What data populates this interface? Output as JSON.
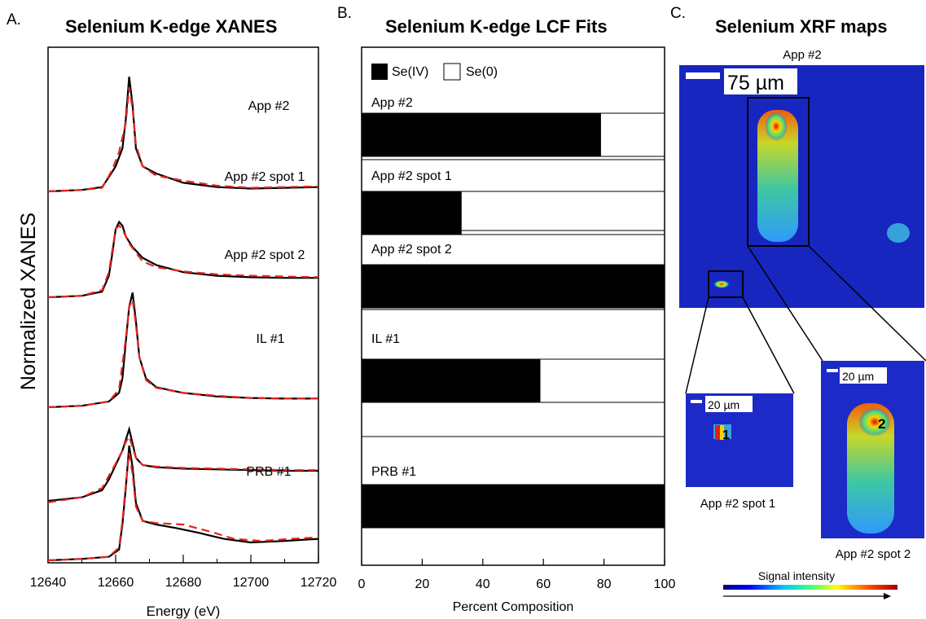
{
  "panels": {
    "a": {
      "letter": "A.",
      "title": "Selenium K-edge XANES"
    },
    "b": {
      "letter": "B.",
      "title": "Selenium K-edge LCF Fits"
    },
    "c": {
      "letter": "C.",
      "title": "Selenium XRF maps"
    }
  },
  "chart_data": [
    {
      "type": "line",
      "title": "Selenium K-edge XANES",
      "xlabel": "Energy (eV)",
      "ylabel": "Normalized XANES",
      "xlim": [
        12640,
        12720
      ],
      "xticks": [
        12640,
        12660,
        12680,
        12700,
        12720
      ],
      "grid": false,
      "line_styles": {
        "data": {
          "color": "#000000",
          "dash": "solid"
        },
        "fit": {
          "color": "#e8231d",
          "dash": "dashed"
        }
      },
      "series": [
        {
          "label": "App #2",
          "data": [
            [
              12640,
              0
            ],
            [
              12650,
              0.02
            ],
            [
              12656,
              0.06
            ],
            [
              12658,
              0.2
            ],
            [
              12660,
              0.35
            ],
            [
              12662,
              0.6
            ],
            [
              12663,
              1.0
            ],
            [
              12664,
              1.6
            ],
            [
              12665,
              1.2
            ],
            [
              12666,
              0.6
            ],
            [
              12668,
              0.35
            ],
            [
              12672,
              0.25
            ],
            [
              12680,
              0.12
            ],
            [
              12690,
              0.06
            ],
            [
              12700,
              0.04
            ],
            [
              12710,
              0.05
            ],
            [
              12720,
              0.06
            ]
          ]
        },
        {
          "label": "App #2 spot 1",
          "data": [
            [
              12640,
              0
            ],
            [
              12650,
              0.02
            ],
            [
              12656,
              0.08
            ],
            [
              12658,
              0.3
            ],
            [
              12659,
              0.6
            ],
            [
              12660,
              0.95
            ],
            [
              12661,
              1.05
            ],
            [
              12662,
              1.0
            ],
            [
              12663,
              0.85
            ],
            [
              12665,
              0.7
            ],
            [
              12668,
              0.55
            ],
            [
              12672,
              0.45
            ],
            [
              12680,
              0.35
            ],
            [
              12690,
              0.3
            ],
            [
              12700,
              0.28
            ],
            [
              12710,
              0.27
            ],
            [
              12720,
              0.27
            ]
          ]
        },
        {
          "label": "App #2 spot 2",
          "data": [
            [
              12640,
              0
            ],
            [
              12650,
              0.02
            ],
            [
              12658,
              0.08
            ],
            [
              12661,
              0.2
            ],
            [
              12662,
              0.4
            ],
            [
              12663,
              0.9
            ],
            [
              12664,
              1.4
            ],
            [
              12665,
              1.6
            ],
            [
              12666,
              1.2
            ],
            [
              12667,
              0.7
            ],
            [
              12669,
              0.4
            ],
            [
              12672,
              0.28
            ],
            [
              12680,
              0.2
            ],
            [
              12690,
              0.15
            ],
            [
              12700,
              0.13
            ],
            [
              12710,
              0.12
            ],
            [
              12720,
              0.12
            ]
          ]
        },
        {
          "label": "IL #1",
          "data": [
            [
              12640,
              0
            ],
            [
              12650,
              0.05
            ],
            [
              12656,
              0.15
            ],
            [
              12658,
              0.3
            ],
            [
              12660,
              0.5
            ],
            [
              12662,
              0.7
            ],
            [
              12663,
              0.85
            ],
            [
              12664,
              1.0
            ],
            [
              12665,
              0.8
            ],
            [
              12666,
              0.6
            ],
            [
              12668,
              0.5
            ],
            [
              12672,
              0.47
            ],
            [
              12680,
              0.45
            ],
            [
              12690,
              0.44
            ],
            [
              12700,
              0.43
            ],
            [
              12710,
              0.42
            ],
            [
              12720,
              0.42
            ]
          ]
        },
        {
          "label": "PRB #1",
          "data": [
            [
              12640,
              0
            ],
            [
              12650,
              0.02
            ],
            [
              12658,
              0.05
            ],
            [
              12661,
              0.15
            ],
            [
              12662,
              0.5
            ],
            [
              12663,
              1.0
            ],
            [
              12664,
              1.6
            ],
            [
              12665,
              1.3
            ],
            [
              12666,
              0.8
            ],
            [
              12668,
              0.55
            ],
            [
              12672,
              0.5
            ],
            [
              12678,
              0.45
            ],
            [
              12685,
              0.38
            ],
            [
              12692,
              0.3
            ],
            [
              12700,
              0.25
            ],
            [
              12710,
              0.27
            ],
            [
              12720,
              0.3
            ]
          ]
        }
      ],
      "fits": [
        {
          "label": "App #2",
          "data": [
            [
              12640,
              0
            ],
            [
              12650,
              0.02
            ],
            [
              12656,
              0.05
            ],
            [
              12659,
              0.3
            ],
            [
              12661,
              0.55
            ],
            [
              12663,
              0.95
            ],
            [
              12664,
              1.45
            ],
            [
              12665,
              1.15
            ],
            [
              12666,
              0.65
            ],
            [
              12668,
              0.35
            ],
            [
              12672,
              0.22
            ],
            [
              12680,
              0.15
            ],
            [
              12690,
              0.08
            ],
            [
              12700,
              0.05
            ],
            [
              12710,
              0.06
            ],
            [
              12720,
              0.07
            ]
          ]
        },
        {
          "label": "App #2 spot 1",
          "data": [
            [
              12640,
              0
            ],
            [
              12650,
              0.02
            ],
            [
              12656,
              0.1
            ],
            [
              12658,
              0.35
            ],
            [
              12659,
              0.65
            ],
            [
              12660,
              0.95
            ],
            [
              12661,
              1.0
            ],
            [
              12662,
              0.95
            ],
            [
              12664,
              0.75
            ],
            [
              12668,
              0.5
            ],
            [
              12672,
              0.42
            ],
            [
              12680,
              0.36
            ],
            [
              12690,
              0.32
            ],
            [
              12700,
              0.3
            ],
            [
              12710,
              0.29
            ],
            [
              12720,
              0.28
            ]
          ]
        },
        {
          "label": "App #2 spot 2",
          "data": [
            [
              12640,
              0
            ],
            [
              12650,
              0.02
            ],
            [
              12658,
              0.08
            ],
            [
              12661,
              0.25
            ],
            [
              12663,
              0.95
            ],
            [
              12664,
              1.4
            ],
            [
              12665,
              1.5
            ],
            [
              12666,
              1.15
            ],
            [
              12667,
              0.7
            ],
            [
              12669,
              0.38
            ],
            [
              12672,
              0.27
            ],
            [
              12680,
              0.2
            ],
            [
              12690,
              0.16
            ],
            [
              12700,
              0.13
            ],
            [
              12710,
              0.12
            ],
            [
              12720,
              0.12
            ]
          ]
        },
        {
          "label": "IL #1",
          "data": [
            [
              12640,
              -0.02
            ],
            [
              12650,
              0.05
            ],
            [
              12656,
              0.18
            ],
            [
              12658,
              0.35
            ],
            [
              12660,
              0.52
            ],
            [
              12662,
              0.7
            ],
            [
              12663,
              0.82
            ],
            [
              12664,
              0.9
            ],
            [
              12665,
              0.75
            ],
            [
              12666,
              0.6
            ],
            [
              12668,
              0.5
            ],
            [
              12672,
              0.48
            ],
            [
              12680,
              0.46
            ],
            [
              12690,
              0.45
            ],
            [
              12700,
              0.44
            ],
            [
              12710,
              0.43
            ],
            [
              12720,
              0.43
            ]
          ]
        },
        {
          "label": "PRB #1",
          "data": [
            [
              12640,
              0
            ],
            [
              12650,
              0.02
            ],
            [
              12658,
              0.05
            ],
            [
              12661,
              0.18
            ],
            [
              12662,
              0.55
            ],
            [
              12663,
              1.05
            ],
            [
              12664,
              1.5
            ],
            [
              12665,
              1.2
            ],
            [
              12666,
              0.75
            ],
            [
              12668,
              0.55
            ],
            [
              12672,
              0.52
            ],
            [
              12680,
              0.5
            ],
            [
              12688,
              0.4
            ],
            [
              12695,
              0.3
            ],
            [
              12703,
              0.27
            ],
            [
              12712,
              0.3
            ],
            [
              12720,
              0.32
            ]
          ]
        }
      ]
    },
    {
      "type": "bar",
      "orientation": "horizontal",
      "stacked": true,
      "title": "Selenium K-edge LCF Fits",
      "xlabel": "Percent Composition",
      "xlim": [
        0,
        100
      ],
      "xticks": [
        0,
        20,
        40,
        60,
        80,
        100
      ],
      "legend": {
        "position": "top-left",
        "items": [
          {
            "label": "Se(IV)",
            "color": "#000000"
          },
          {
            "label": "Se(0)",
            "color": "#ffffff"
          }
        ]
      },
      "categories": [
        "App #2",
        "App #2 spot 1",
        "App #2 spot 2",
        "IL #1",
        "PRB #1"
      ],
      "series": [
        {
          "name": "Se(IV)",
          "values": [
            79,
            33,
            100,
            59,
            100
          ]
        },
        {
          "name": "Se(0)",
          "values": [
            21,
            67,
            0,
            41,
            0
          ]
        }
      ]
    }
  ],
  "xrf": {
    "main_label": "App #2",
    "main_scale": "75 µm",
    "inset_scale": "20 µm",
    "spot1_marker": "1",
    "spot2_marker": "2",
    "spot1_caption": "App #2 spot 1",
    "spot2_caption": "App #2 spot 2",
    "colorbar_label": "Signal intensity",
    "map_background": "#1420c8"
  }
}
